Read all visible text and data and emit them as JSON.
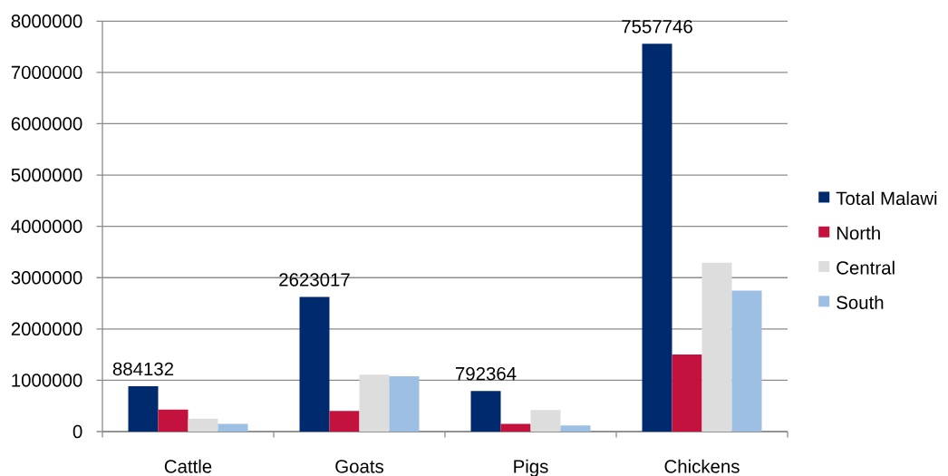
{
  "chart_data": {
    "type": "bar",
    "categories": [
      "Cattle",
      "Goats",
      "Pigs",
      "Chickens"
    ],
    "series": [
      {
        "name": "Total Malawi",
        "color": "#002a6e",
        "values": [
          884132,
          2623017,
          792364,
          7557746
        ],
        "value_labels": [
          "884132",
          "2623017",
          "792364",
          "7557746"
        ]
      },
      {
        "name": "North",
        "color": "#c4123e",
        "values": [
          430000,
          400000,
          150000,
          1500000
        ]
      },
      {
        "name": "Central",
        "color": "#dddddd",
        "values": [
          250000,
          1110000,
          420000,
          3290000
        ]
      },
      {
        "name": "South",
        "color": "#9dbfe3",
        "values": [
          150000,
          1080000,
          120000,
          2750000
        ]
      }
    ],
    "ylim": [
      0,
      8000000
    ],
    "yticks": [
      0,
      1000000,
      2000000,
      3000000,
      4000000,
      5000000,
      6000000,
      7000000,
      8000000
    ],
    "grid": "y",
    "legend": "right"
  }
}
